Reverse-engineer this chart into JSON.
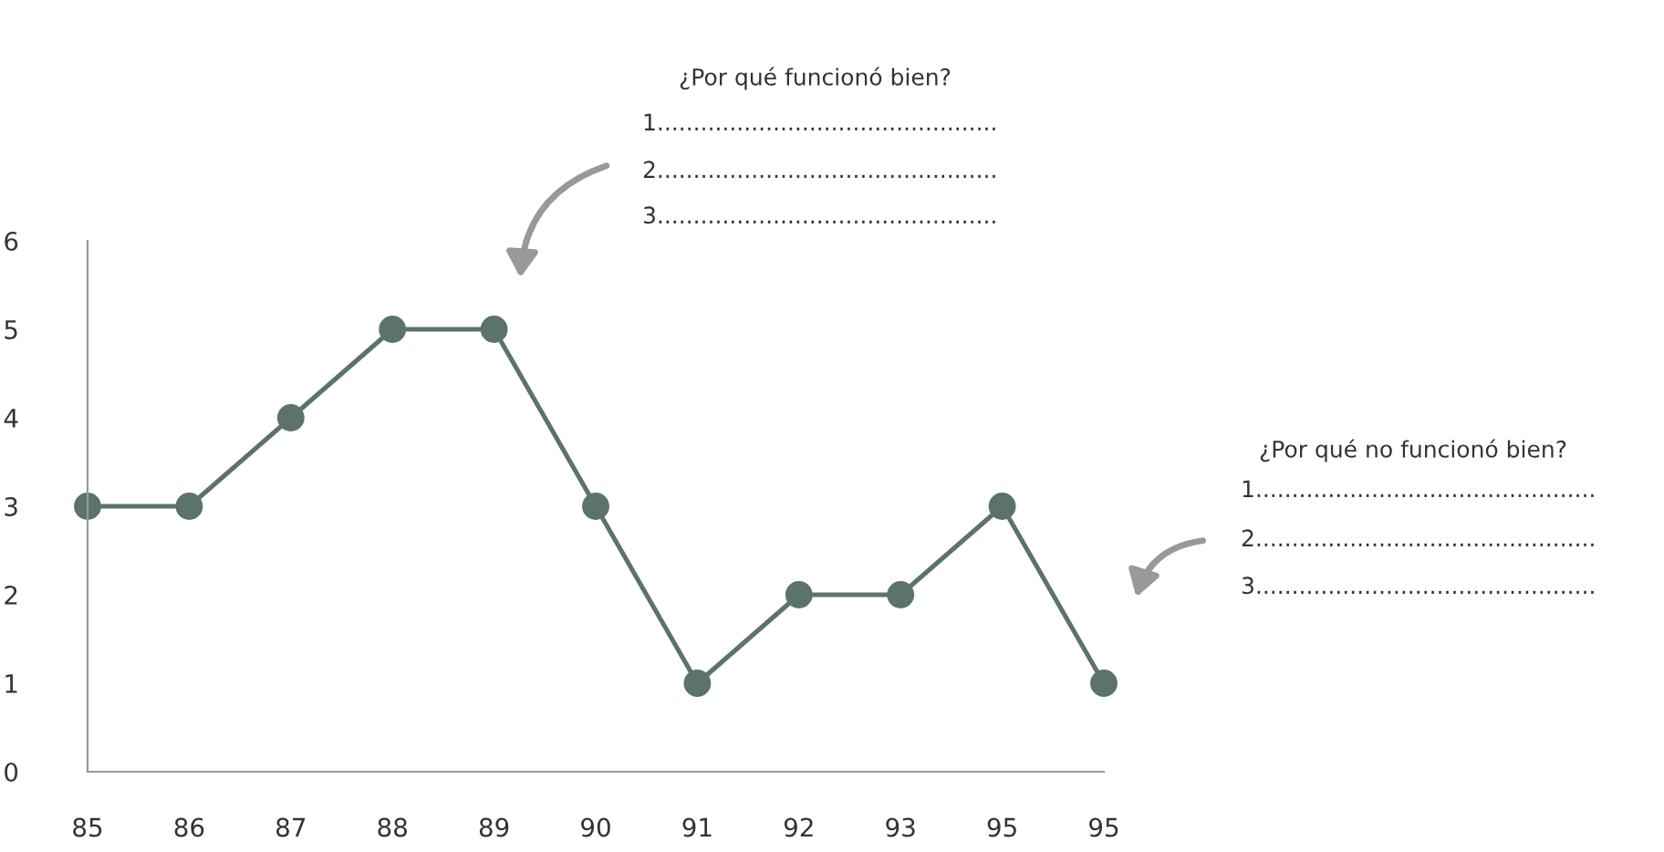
{
  "chart_data": {
    "type": "line",
    "categories": [
      "85",
      "86",
      "87",
      "88",
      "89",
      "90",
      "91",
      "92",
      "93",
      "95",
      "95"
    ],
    "series": [
      {
        "color": "#5b7369",
        "values": [
          3,
          3,
          4,
          5,
          5,
          3,
          1,
          2,
          2,
          3,
          1
        ]
      }
    ],
    "ylim": [
      0,
      6
    ],
    "yticks": [
      0,
      1,
      2,
      3,
      4,
      5,
      6
    ],
    "marker": "circle",
    "line_style": "solid",
    "grid": false,
    "legend": false,
    "annotations": [
      "¿Por qué funcionó bien?",
      "1...............................................",
      "2...............................................",
      "3...............................................",
      "¿Por qué no funcionó bien?",
      "1...............................................",
      "2...............................................",
      "3..............................................."
    ]
  }
}
